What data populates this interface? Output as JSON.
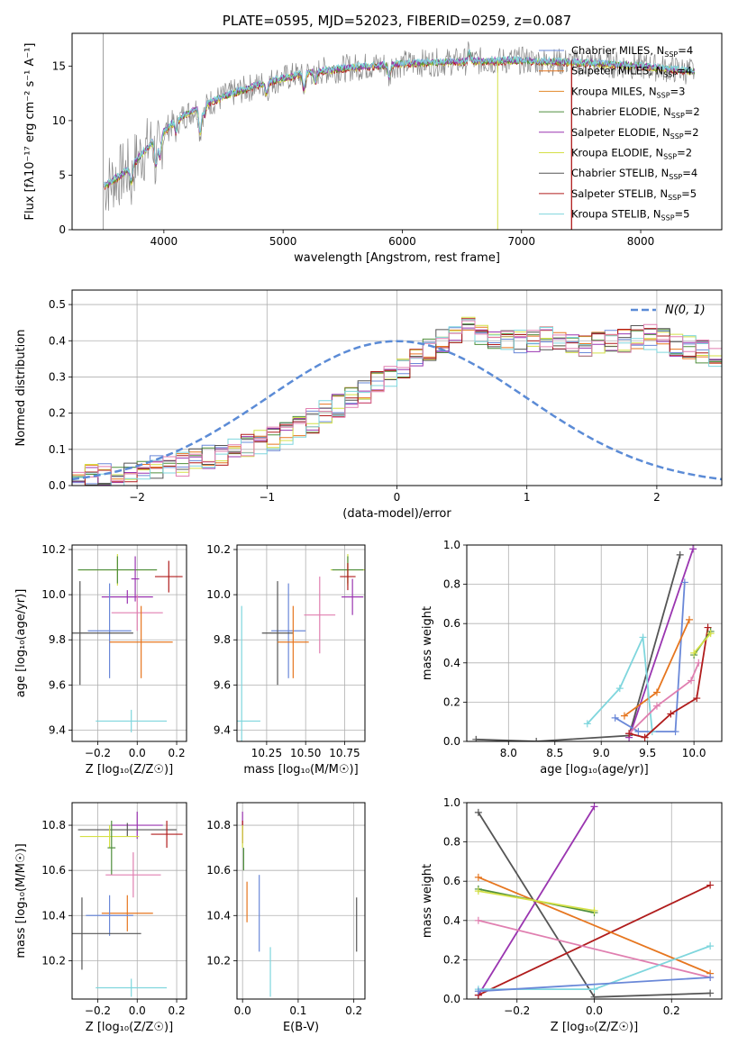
{
  "colors": {
    "Chabrier MILES": "#6a88d8",
    "Salpeter MILES": "#e6761f",
    "Kroupa MILES": "#e2882a",
    "Chabrier ELODIE": "#4f8f3c",
    "Salpeter ELODIE": "#9a35b0",
    "Kroupa ELODIE": "#d4e046",
    "Chabrier STELIB": "#555555",
    "Salpeter STELIB": "#b01c1c",
    "Kroupa STELIB": "#7fd6dd",
    "pink": "#e07fb0",
    "gauss": "#5b8bd6",
    "grid": "#b0b0b0",
    "data": "#888888"
  },
  "chart_data": [
    {
      "type": "line",
      "title": "PLATE=0595, MJD=52023, FIBERID=0259, z=0.087",
      "xlabel": "wavelength [Angstrom, rest frame]",
      "ylabel": "Flux [fλ10⁻¹⁷ erg cm⁻² s⁻¹ A⁻¹]",
      "xlim": [
        3230,
        8680
      ],
      "ylim": [
        0,
        18
      ],
      "xticks": [
        "4000",
        "5000",
        "6000",
        "7000",
        "8000"
      ],
      "yticks": [
        "0",
        "5",
        "10",
        "15"
      ],
      "grid": false,
      "legend_position": "top-right",
      "legend": [
        {
          "label": "Chabrier MILES, N",
          "sub": "SSP",
          "tail": "=4"
        },
        {
          "label": "Salpeter MILES, N",
          "sub": "SSP",
          "tail": "=4"
        },
        {
          "label": "Kroupa MILES, N",
          "sub": "SSP",
          "tail": "=3"
        },
        {
          "label": "Chabrier ELODIE, N",
          "sub": "SSP",
          "tail": "=2"
        },
        {
          "label": "Salpeter ELODIE, N",
          "sub": "SSP",
          "tail": "=2"
        },
        {
          "label": "Kroupa ELODIE, N",
          "sub": "SSP",
          "tail": "=2"
        },
        {
          "label": "Chabrier STELIB, N",
          "sub": "SSP",
          "tail": "=4"
        },
        {
          "label": "Salpeter STELIB, N",
          "sub": "SSP",
          "tail": "=5"
        },
        {
          "label": "Kroupa STELIB, N",
          "sub": "SSP",
          "tail": "=5"
        }
      ],
      "continuum": [
        [
          3500,
          4.0
        ],
        [
          3700,
          5.5
        ],
        [
          3900,
          8.0
        ],
        [
          4100,
          10.0
        ],
        [
          4300,
          11.3
        ],
        [
          4600,
          12.6
        ],
        [
          4900,
          13.6
        ],
        [
          5200,
          14.4
        ],
        [
          5600,
          14.9
        ],
        [
          6000,
          15.2
        ],
        [
          6400,
          15.4
        ],
        [
          7000,
          15.5
        ],
        [
          7500,
          15.3
        ],
        [
          8000,
          15.0
        ],
        [
          8450,
          14.5
        ]
      ],
      "line_features": [
        [
          3727,
          -1.5
        ],
        [
          3934,
          -2.5
        ],
        [
          3968,
          -2.0
        ],
        [
          4102,
          -1.0
        ],
        [
          4304,
          -2.5
        ],
        [
          4340,
          -1.0
        ],
        [
          4861,
          -1.0
        ],
        [
          5175,
          -1.5
        ],
        [
          5270,
          -1.0
        ],
        [
          5890,
          -1.2
        ],
        [
          6563,
          0.8
        ]
      ]
    },
    {
      "type": "area",
      "xlabel": "(data-model)/error",
      "ylabel": "Normed distribution",
      "xlim": [
        -2.5,
        2.5
      ],
      "ylim": [
        0,
        0.54
      ],
      "xticks": [
        "−2",
        "−1",
        "0",
        "1",
        "2"
      ],
      "yticks": [
        "0.0",
        "0.1",
        "0.2",
        "0.3",
        "0.4",
        "0.5"
      ],
      "grid": true,
      "legend": "N(0, 1)",
      "legend_position": "top-right",
      "bin_width": 0.1,
      "envelope": [
        0.02,
        0.025,
        0.03,
        0.035,
        0.04,
        0.045,
        0.05,
        0.055,
        0.06,
        0.07,
        0.08,
        0.09,
        0.1,
        0.11,
        0.12,
        0.13,
        0.145,
        0.16,
        0.18,
        0.2,
        0.22,
        0.24,
        0.26,
        0.28,
        0.3,
        0.32,
        0.35,
        0.38,
        0.4,
        0.42,
        0.43,
        0.42,
        0.41,
        0.4,
        0.4,
        0.4,
        0.41,
        0.41,
        0.4,
        0.39,
        0.39,
        0.4,
        0.4,
        0.41,
        0.41,
        0.4,
        0.39,
        0.38,
        0.37,
        0.36,
        0.34,
        0.32,
        0.3,
        0.28,
        0.26,
        0.24,
        0.22,
        0.21,
        0.2,
        0.19,
        0.18,
        0.16,
        0.15,
        0.13,
        0.12,
        0.1,
        0.09,
        0.08,
        0.07,
        0.065,
        0.06,
        0.05,
        0.045,
        0.04,
        0.035,
        0.03,
        0.03,
        0.025,
        0.02,
        0.02
      ]
    },
    {
      "type": "scatter",
      "xlabel": "Z [log₁₀(Z/Z☉)]",
      "ylabel": "age  [log₁₀(age/yr)]",
      "xlim": [
        -0.33,
        0.25
      ],
      "ylim": [
        9.35,
        10.22
      ],
      "xticks": [
        "−0.2",
        "0.0",
        "0.2"
      ],
      "yticks": [
        "9.4",
        "9.6",
        "9.8",
        "10.0",
        "10.2"
      ],
      "grid": true,
      "points": [
        {
          "series": "Kroupa ELODIE",
          "x": -0.1,
          "y": 10.11,
          "dx": 0.2,
          "dy": 0.07
        },
        {
          "series": "Chabrier ELODIE",
          "x": -0.1,
          "y": 10.11,
          "dx": 0.2,
          "dy": 0.06
        },
        {
          "series": "Salpeter ELODIE",
          "x": -0.01,
          "y": 10.07,
          "dx": 0.02,
          "dy": 0.1
        },
        {
          "series": "Salpeter STELIB",
          "x": 0.16,
          "y": 10.08,
          "dx": 0.07,
          "dy": 0.07
        },
        {
          "series": "Salpeter ELODIE",
          "x": -0.05,
          "y": 9.99,
          "dx": 0.13,
          "dy": 0.03
        },
        {
          "series": "pink",
          "x": 0.0,
          "y": 9.92,
          "dx": 0.13,
          "dy": 0.08
        },
        {
          "series": "Chabrier MILES",
          "x": -0.14,
          "y": 9.84,
          "dx": 0.11,
          "dy": 0.21
        },
        {
          "series": "Chabrier STELIB",
          "x": -0.29,
          "y": 9.83,
          "dx": 0.27,
          "dy": 0.23
        },
        {
          "series": "Salpeter MILES",
          "x": 0.02,
          "y": 9.79,
          "dx": 0.16,
          "dy": 0.16
        },
        {
          "series": "Kroupa STELIB",
          "x": -0.03,
          "y": 9.44,
          "dx": 0.18,
          "dy": 0.05
        }
      ]
    },
    {
      "type": "scatter",
      "xlabel": "mass [log₁₀(M/M☉)]",
      "xlim": [
        10.06,
        10.88
      ],
      "ylim": [
        9.35,
        10.22
      ],
      "xticks": [
        "10.25",
        "10.50",
        "10.75"
      ],
      "yticks": [
        "9.4",
        "9.6",
        "9.8",
        "10.0",
        "10.2"
      ],
      "grid": true,
      "points": [
        {
          "series": "Kroupa ELODIE",
          "x": 10.77,
          "y": 10.11,
          "dx": 0.11,
          "dy": 0.07
        },
        {
          "series": "Chabrier ELODIE",
          "x": 10.77,
          "y": 10.11,
          "dx": 0.1,
          "dy": 0.06
        },
        {
          "series": "Salpeter STELIB",
          "x": 10.77,
          "y": 10.08,
          "dx": 0.05,
          "dy": 0.06
        },
        {
          "series": "Salpeter ELODIE",
          "x": 10.8,
          "y": 9.99,
          "dx": 0.07,
          "dy": 0.08
        },
        {
          "series": "pink",
          "x": 10.59,
          "y": 9.91,
          "dx": 0.1,
          "dy": 0.17
        },
        {
          "series": "Chabrier MILES",
          "x": 10.39,
          "y": 9.84,
          "dx": 0.11,
          "dy": 0.21
        },
        {
          "series": "Chabrier STELIB",
          "x": 10.32,
          "y": 9.83,
          "dx": 0.1,
          "dy": 0.23
        },
        {
          "series": "Salpeter MILES",
          "x": 10.42,
          "y": 9.79,
          "dx": 0.1,
          "dy": 0.16
        },
        {
          "series": "Kroupa STELIB",
          "x": 10.09,
          "y": 9.44,
          "dx": 0.12,
          "dy": 0.51
        }
      ]
    },
    {
      "type": "line",
      "xlabel": "age  [log₁₀(age/yr)]",
      "ylabel": "mass weight",
      "xlim": [
        7.55,
        10.3
      ],
      "ylim": [
        0,
        1
      ],
      "xticks": [
        "8.0",
        "8.5",
        "9.0",
        "9.5",
        "10.0"
      ],
      "yticks": [
        "0.0",
        "0.2",
        "0.4",
        "0.6",
        "0.8",
        "1.0"
      ],
      "grid": true,
      "series": [
        {
          "name": "Chabrier STELIB",
          "x": [
            7.65,
            8.3,
            9.3,
            9.85
          ],
          "y": [
            0.01,
            0.0,
            0.03,
            0.95
          ]
        },
        {
          "name": "Salpeter ELODIE",
          "x": [
            9.3,
            9.99
          ],
          "y": [
            0.02,
            0.98
          ]
        },
        {
          "name": "Chabrier MILES",
          "x": [
            9.15,
            9.4,
            9.8,
            9.9
          ],
          "y": [
            0.12,
            0.05,
            0.05,
            0.81
          ]
        },
        {
          "name": "Salpeter MILES",
          "x": [
            9.25,
            9.6,
            9.95
          ],
          "y": [
            0.13,
            0.25,
            0.62
          ]
        },
        {
          "name": "Kroupa STELIB",
          "x": [
            8.85,
            9.2,
            9.45,
            9.55
          ],
          "y": [
            0.09,
            0.27,
            0.53,
            0.05
          ]
        },
        {
          "name": "pink",
          "x": [
            9.3,
            9.6,
            9.97,
            10.05
          ],
          "y": [
            0.04,
            0.18,
            0.31,
            0.4
          ]
        },
        {
          "name": "Salpeter STELIB",
          "x": [
            9.3,
            9.47,
            9.75,
            10.03,
            10.15
          ],
          "y": [
            0.04,
            0.02,
            0.14,
            0.22,
            0.58
          ]
        },
        {
          "name": "Chabrier ELODIE",
          "x": [
            10.0,
            10.18
          ],
          "y": [
            0.44,
            0.56
          ]
        },
        {
          "name": "Kroupa ELODIE",
          "x": [
            10.0,
            10.18
          ],
          "y": [
            0.45,
            0.55
          ]
        }
      ]
    },
    {
      "type": "scatter",
      "xlabel": "Z [log₁₀(Z/Z☉)]",
      "ylabel": "mass [log₁₀(M/M☉)]",
      "xlim": [
        -0.33,
        0.25
      ],
      "ylim": [
        10.03,
        10.9
      ],
      "xticks": [
        "−0.2",
        "0.0",
        "0.2"
      ],
      "yticks": [
        "10.2",
        "10.4",
        "10.6",
        "10.8"
      ],
      "grid": true,
      "points": [
        {
          "series": "Salpeter ELODIE",
          "x": 0.0,
          "y": 10.8,
          "dx": 0.13,
          "dy": 0.06
        },
        {
          "series": "Chabrier STELIB",
          "x": -0.05,
          "y": 10.78,
          "dx": 0.25,
          "dy": 0.03
        },
        {
          "series": "Salpeter STELIB",
          "x": 0.15,
          "y": 10.76,
          "dx": 0.08,
          "dy": 0.06
        },
        {
          "series": "Kroupa ELODIE",
          "x": -0.14,
          "y": 10.75,
          "dx": 0.15,
          "dy": 0.05
        },
        {
          "series": "Chabrier ELODIE",
          "x": -0.13,
          "y": 10.7,
          "dx": 0.02,
          "dy": 0.12
        },
        {
          "series": "pink",
          "x": -0.02,
          "y": 10.58,
          "dx": 0.14,
          "dy": 0.1
        },
        {
          "series": "Salpeter MILES",
          "x": -0.05,
          "y": 10.41,
          "dx": 0.13,
          "dy": 0.08
        },
        {
          "series": "Chabrier MILES",
          "x": -0.14,
          "y": 10.4,
          "dx": 0.12,
          "dy": 0.09
        },
        {
          "series": "Chabrier STELIB",
          "x": -0.28,
          "y": 10.32,
          "dx": 0.3,
          "dy": 0.16
        },
        {
          "series": "Kroupa STELIB",
          "x": -0.03,
          "y": 10.08,
          "dx": 0.18,
          "dy": 0.04
        }
      ]
    },
    {
      "type": "scatter",
      "xlabel": "E(B-V)",
      "xlim": [
        -0.01,
        0.22
      ],
      "ylim": [
        10.03,
        10.9
      ],
      "xticks": [
        "0.0",
        "0.1",
        "0.2"
      ],
      "yticks": [
        "10.2",
        "10.4",
        "10.6",
        "10.8"
      ],
      "grid": true,
      "points": [
        {
          "series": "Salpeter ELODIE",
          "x": 0.0,
          "y": 10.79,
          "dx": 0.0,
          "dy": 0.07
        },
        {
          "series": "Salpeter STELIB",
          "x": 0.0,
          "y": 10.77,
          "dx": 0.0,
          "dy": 0.05
        },
        {
          "series": "Kroupa ELODIE",
          "x": 0.0,
          "y": 10.75,
          "dx": 0.0,
          "dy": 0.05
        },
        {
          "series": "Chabrier ELODIE",
          "x": 0.002,
          "y": 10.65,
          "dx": 0.0,
          "dy": 0.05
        },
        {
          "series": "Salpeter MILES",
          "x": 0.008,
          "y": 10.46,
          "dx": 0.0,
          "dy": 0.09
        },
        {
          "series": "Chabrier MILES",
          "x": 0.03,
          "y": 10.41,
          "dx": 0.0,
          "dy": 0.17
        },
        {
          "series": "Kroupa STELIB",
          "x": 0.05,
          "y": 10.15,
          "dx": 0.0,
          "dy": 0.11
        },
        {
          "series": "Chabrier STELIB",
          "x": 0.205,
          "y": 10.36,
          "dx": 0.0,
          "dy": 0.12
        }
      ]
    },
    {
      "type": "line",
      "xlabel": "Z [log₁₀(Z/Z☉)]",
      "ylabel": "mass weight",
      "xlim": [
        -0.33,
        0.33
      ],
      "ylim": [
        0,
        1
      ],
      "xticks": [
        "−0.2",
        "0.0",
        "0.2"
      ],
      "yticks": [
        "0.0",
        "0.2",
        "0.4",
        "0.6",
        "0.8",
        "1.0"
      ],
      "grid": true,
      "series": [
        {
          "name": "Chabrier STELIB",
          "x": [
            -0.3,
            0.0,
            0.3
          ],
          "y": [
            0.95,
            0.01,
            0.03
          ]
        },
        {
          "name": "Salpeter ELODIE",
          "x": [
            -0.3,
            0.0
          ],
          "y": [
            0.02,
            0.98
          ]
        },
        {
          "name": "Salpeter STELIB",
          "x": [
            -0.3,
            0.3
          ],
          "y": [
            0.02,
            0.58
          ]
        },
        {
          "name": "Salpeter MILES",
          "x": [
            -0.3,
            0.3
          ],
          "y": [
            0.62,
            0.13
          ]
        },
        {
          "name": "pink",
          "x": [
            -0.3,
            0.3
          ],
          "y": [
            0.4,
            0.11
          ]
        },
        {
          "name": "Chabrier ELODIE",
          "x": [
            -0.3,
            0.0
          ],
          "y": [
            0.56,
            0.44
          ]
        },
        {
          "name": "Kroupa ELODIE",
          "x": [
            -0.3,
            0.0
          ],
          "y": [
            0.55,
            0.45
          ]
        },
        {
          "name": "Kroupa STELIB",
          "x": [
            -0.3,
            0.0,
            0.3
          ],
          "y": [
            0.05,
            0.05,
            0.27
          ]
        },
        {
          "name": "Chabrier MILES",
          "x": [
            -0.3,
            0.3
          ],
          "y": [
            0.04,
            0.11
          ]
        }
      ]
    }
  ]
}
